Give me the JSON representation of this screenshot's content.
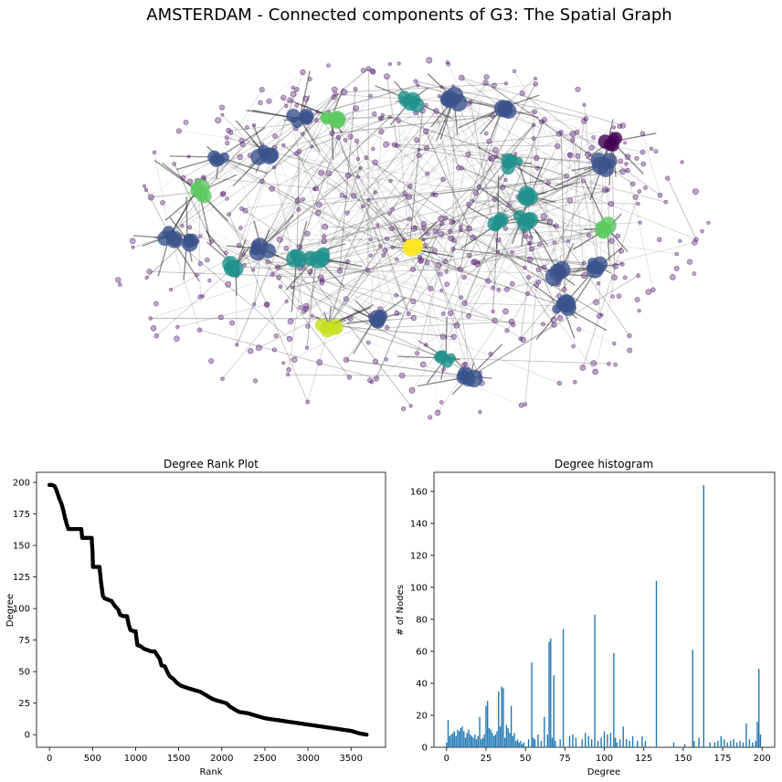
{
  "figure": {
    "title": "AMSTERDAM - Connected components of G3: The Spatial Graph"
  },
  "chart_data": [
    {
      "type": "network",
      "colormap": [
        "#440154",
        "#3b528b",
        "#21918c",
        "#5ec962",
        "#fde725"
      ],
      "node_color": "#6b3d8a",
      "edge_color": "#555555"
    },
    {
      "type": "scatter",
      "title": "Degree Rank Plot",
      "xlabel": "Rank",
      "ylabel": "Degree",
      "xlim": [
        -150,
        3900
      ],
      "ylim": [
        -10,
        208
      ],
      "xticks": [
        0,
        500,
        1000,
        1500,
        2000,
        2500,
        3000,
        3500
      ],
      "yticks": [
        0,
        25,
        50,
        75,
        100,
        125,
        150,
        175,
        200
      ],
      "marker_color": "#000000",
      "points": [
        [
          0,
          198
        ],
        [
          30,
          198
        ],
        [
          60,
          197
        ],
        [
          80,
          194
        ],
        [
          100,
          190
        ],
        [
          120,
          186
        ],
        [
          140,
          183
        ],
        [
          160,
          178
        ],
        [
          180,
          172
        ],
        [
          200,
          167
        ],
        [
          220,
          163
        ],
        [
          260,
          163
        ],
        [
          300,
          163
        ],
        [
          340,
          163
        ],
        [
          370,
          163
        ],
        [
          380,
          156
        ],
        [
          420,
          156
        ],
        [
          460,
          156
        ],
        [
          490,
          156
        ],
        [
          500,
          145
        ],
        [
          505,
          133
        ],
        [
          540,
          133
        ],
        [
          580,
          133
        ],
        [
          600,
          120
        ],
        [
          620,
          110
        ],
        [
          640,
          108
        ],
        [
          680,
          107
        ],
        [
          720,
          106
        ],
        [
          760,
          102
        ],
        [
          800,
          99
        ],
        [
          820,
          95
        ],
        [
          860,
          94
        ],
        [
          900,
          94
        ],
        [
          920,
          87
        ],
        [
          940,
          83
        ],
        [
          980,
          82
        ],
        [
          1000,
          82
        ],
        [
          1020,
          71
        ],
        [
          1060,
          70
        ],
        [
          1100,
          68
        ],
        [
          1140,
          67
        ],
        [
          1180,
          66
        ],
        [
          1220,
          66
        ],
        [
          1260,
          62
        ],
        [
          1280,
          60
        ],
        [
          1300,
          55
        ],
        [
          1340,
          54
        ],
        [
          1380,
          48
        ],
        [
          1400,
          46
        ],
        [
          1440,
          44
        ],
        [
          1480,
          41
        ],
        [
          1520,
          39
        ],
        [
          1560,
          38
        ],
        [
          1600,
          37
        ],
        [
          1650,
          36
        ],
        [
          1700,
          35
        ],
        [
          1750,
          34
        ],
        [
          1800,
          32
        ],
        [
          1850,
          30
        ],
        [
          1900,
          28
        ],
        [
          1950,
          27
        ],
        [
          2000,
          26
        ],
        [
          2050,
          25
        ],
        [
          2100,
          22
        ],
        [
          2150,
          20
        ],
        [
          2200,
          18
        ],
        [
          2300,
          17
        ],
        [
          2400,
          15
        ],
        [
          2500,
          13
        ],
        [
          2600,
          12
        ],
        [
          2700,
          11
        ],
        [
          2800,
          10
        ],
        [
          2900,
          9
        ],
        [
          3000,
          8
        ],
        [
          3100,
          7
        ],
        [
          3200,
          6
        ],
        [
          3300,
          5
        ],
        [
          3400,
          4
        ],
        [
          3500,
          3
        ],
        [
          3550,
          2
        ],
        [
          3600,
          1
        ],
        [
          3680,
          0
        ]
      ]
    },
    {
      "type": "bar",
      "title": "Degree histogram",
      "xlabel": "Degree",
      "ylabel": "# of Nodes",
      "xlim": [
        -8,
        208
      ],
      "ylim": [
        0,
        172
      ],
      "xticks": [
        0,
        25,
        50,
        75,
        100,
        125,
        150,
        175,
        200
      ],
      "yticks": [
        0,
        20,
        40,
        60,
        80,
        100,
        120,
        140,
        160
      ],
      "bar_color": "#1f77b4",
      "degrees": [
        0,
        1,
        2,
        3,
        4,
        5,
        6,
        7,
        8,
        9,
        10,
        11,
        12,
        13,
        14,
        15,
        16,
        17,
        18,
        19,
        20,
        21,
        22,
        23,
        24,
        25,
        26,
        27,
        28,
        29,
        30,
        31,
        32,
        33,
        34,
        35,
        36,
        37,
        38,
        39,
        40,
        41,
        42,
        43,
        44,
        45,
        46,
        47,
        48,
        49,
        52,
        54,
        55,
        56,
        58,
        60,
        62,
        64,
        65,
        66,
        67,
        68,
        69,
        72,
        74,
        78,
        80,
        82,
        86,
        88,
        90,
        92,
        94,
        96,
        98,
        100,
        102,
        104,
        106,
        107,
        108,
        110,
        112,
        114,
        116,
        118,
        121,
        124,
        126,
        133,
        144,
        151,
        156,
        157,
        160,
        163,
        167,
        170,
        172,
        174,
        176,
        178,
        180,
        182,
        184,
        186,
        188,
        190,
        192,
        194,
        196,
        197,
        198,
        199
      ],
      "counts": [
        3,
        17,
        7,
        8,
        9,
        10,
        7,
        11,
        10,
        12,
        13,
        10,
        6,
        9,
        11,
        8,
        7,
        6,
        8,
        5,
        7,
        19,
        5,
        6,
        8,
        26,
        29,
        12,
        11,
        9,
        7,
        8,
        10,
        35,
        13,
        38,
        37,
        6,
        14,
        12,
        9,
        26,
        7,
        9,
        4,
        5,
        3,
        4,
        2,
        3,
        5,
        53,
        6,
        5,
        8,
        4,
        19,
        8,
        66,
        68,
        6,
        45,
        4,
        5,
        74,
        7,
        8,
        6,
        5,
        9,
        7,
        5,
        83,
        4,
        6,
        10,
        8,
        9,
        59,
        6,
        3,
        5,
        13,
        5,
        4,
        7,
        4,
        7,
        4,
        104,
        3,
        2,
        61,
        4,
        6,
        164,
        3,
        3,
        4,
        7,
        5,
        3,
        4,
        5,
        3,
        4,
        3,
        15,
        5,
        3,
        4,
        16,
        49,
        8
      ]
    }
  ]
}
